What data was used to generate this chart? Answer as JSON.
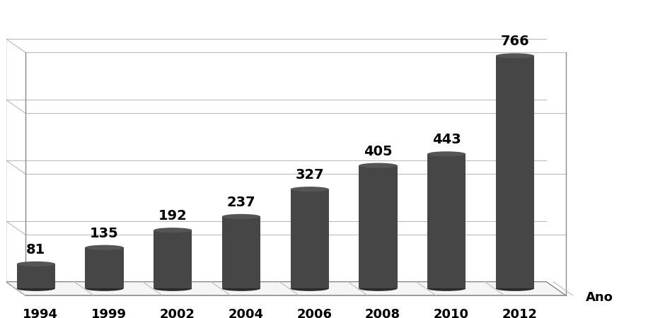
{
  "categories": [
    "1994",
    "1999",
    "2002",
    "2004",
    "2006",
    "2008",
    "2010",
    "2012"
  ],
  "values": [
    81,
    135,
    192,
    237,
    327,
    405,
    443,
    766
  ],
  "bar_color_body": "#464646",
  "bar_color_top": "#555555",
  "bar_color_shadow": "#333333",
  "background_color": "#ffffff",
  "grid_color": "#bbbbbb",
  "xlabel": "Ano",
  "value_label_fontsize": 14,
  "tick_label_fontsize": 13,
  "xlabel_fontsize": 13,
  "ylim_max": 820,
  "n_gridlines": 5
}
